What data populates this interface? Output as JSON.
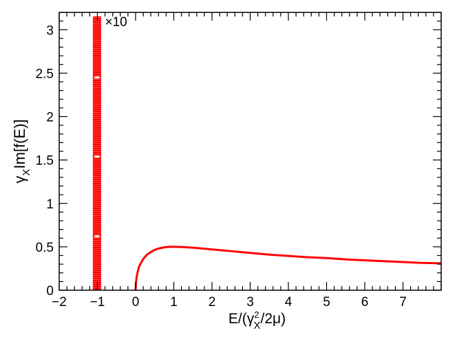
{
  "chart_data": {
    "type": "line",
    "title": "",
    "xlabel": {
      "main": "E/(γ",
      "sup": "2",
      "sub": "X",
      "tail": "/2μ)"
    },
    "ylabel": {
      "main": "γ",
      "sub": "X",
      "tail": "Im[f(E)]"
    },
    "xlim": [
      -2,
      8
    ],
    "ylim": [
      0,
      3.2
    ],
    "xticks": [
      -2,
      -1,
      0,
      1,
      2,
      3,
      4,
      5,
      6,
      7
    ],
    "xtick_labels": [
      "−2",
      "−1",
      "0",
      "1",
      "2",
      "3",
      "4",
      "5",
      "6",
      "7"
    ],
    "yticks": [
      0,
      0.5,
      1,
      1.5,
      2,
      2.5,
      3
    ],
    "ytick_labels": [
      "0",
      "0.5",
      "1",
      "1.5",
      "2",
      "2.5",
      "3"
    ],
    "grid": false,
    "series": [
      {
        "color": "#ff0000",
        "x": [
          0,
          0.01,
          0.03,
          0.06,
          0.1,
          0.15,
          0.2,
          0.3,
          0.4,
          0.5,
          0.6,
          0.7,
          0.8,
          0.9,
          1.0,
          1.2,
          1.5,
          2.0,
          2.5,
          3.0,
          3.5,
          4.0,
          4.5,
          5.0,
          5.5,
          6.0,
          6.5,
          7.0,
          7.5,
          8.0
        ],
        "y": [
          0,
          0.09,
          0.16,
          0.22,
          0.28,
          0.32,
          0.36,
          0.41,
          0.44,
          0.465,
          0.48,
          0.49,
          0.497,
          0.5,
          0.5,
          0.498,
          0.49,
          0.47,
          0.45,
          0.43,
          0.41,
          0.395,
          0.38,
          0.37,
          0.355,
          0.345,
          0.335,
          0.325,
          0.315,
          0.31
        ]
      }
    ],
    "band": {
      "color": "#ff0000",
      "x_range": [
        -1.11,
        -0.91
      ],
      "y_range": [
        0,
        3.15
      ],
      "annotation": "×10",
      "markers_y": [
        2.45,
        1.54,
        0.62
      ]
    }
  }
}
